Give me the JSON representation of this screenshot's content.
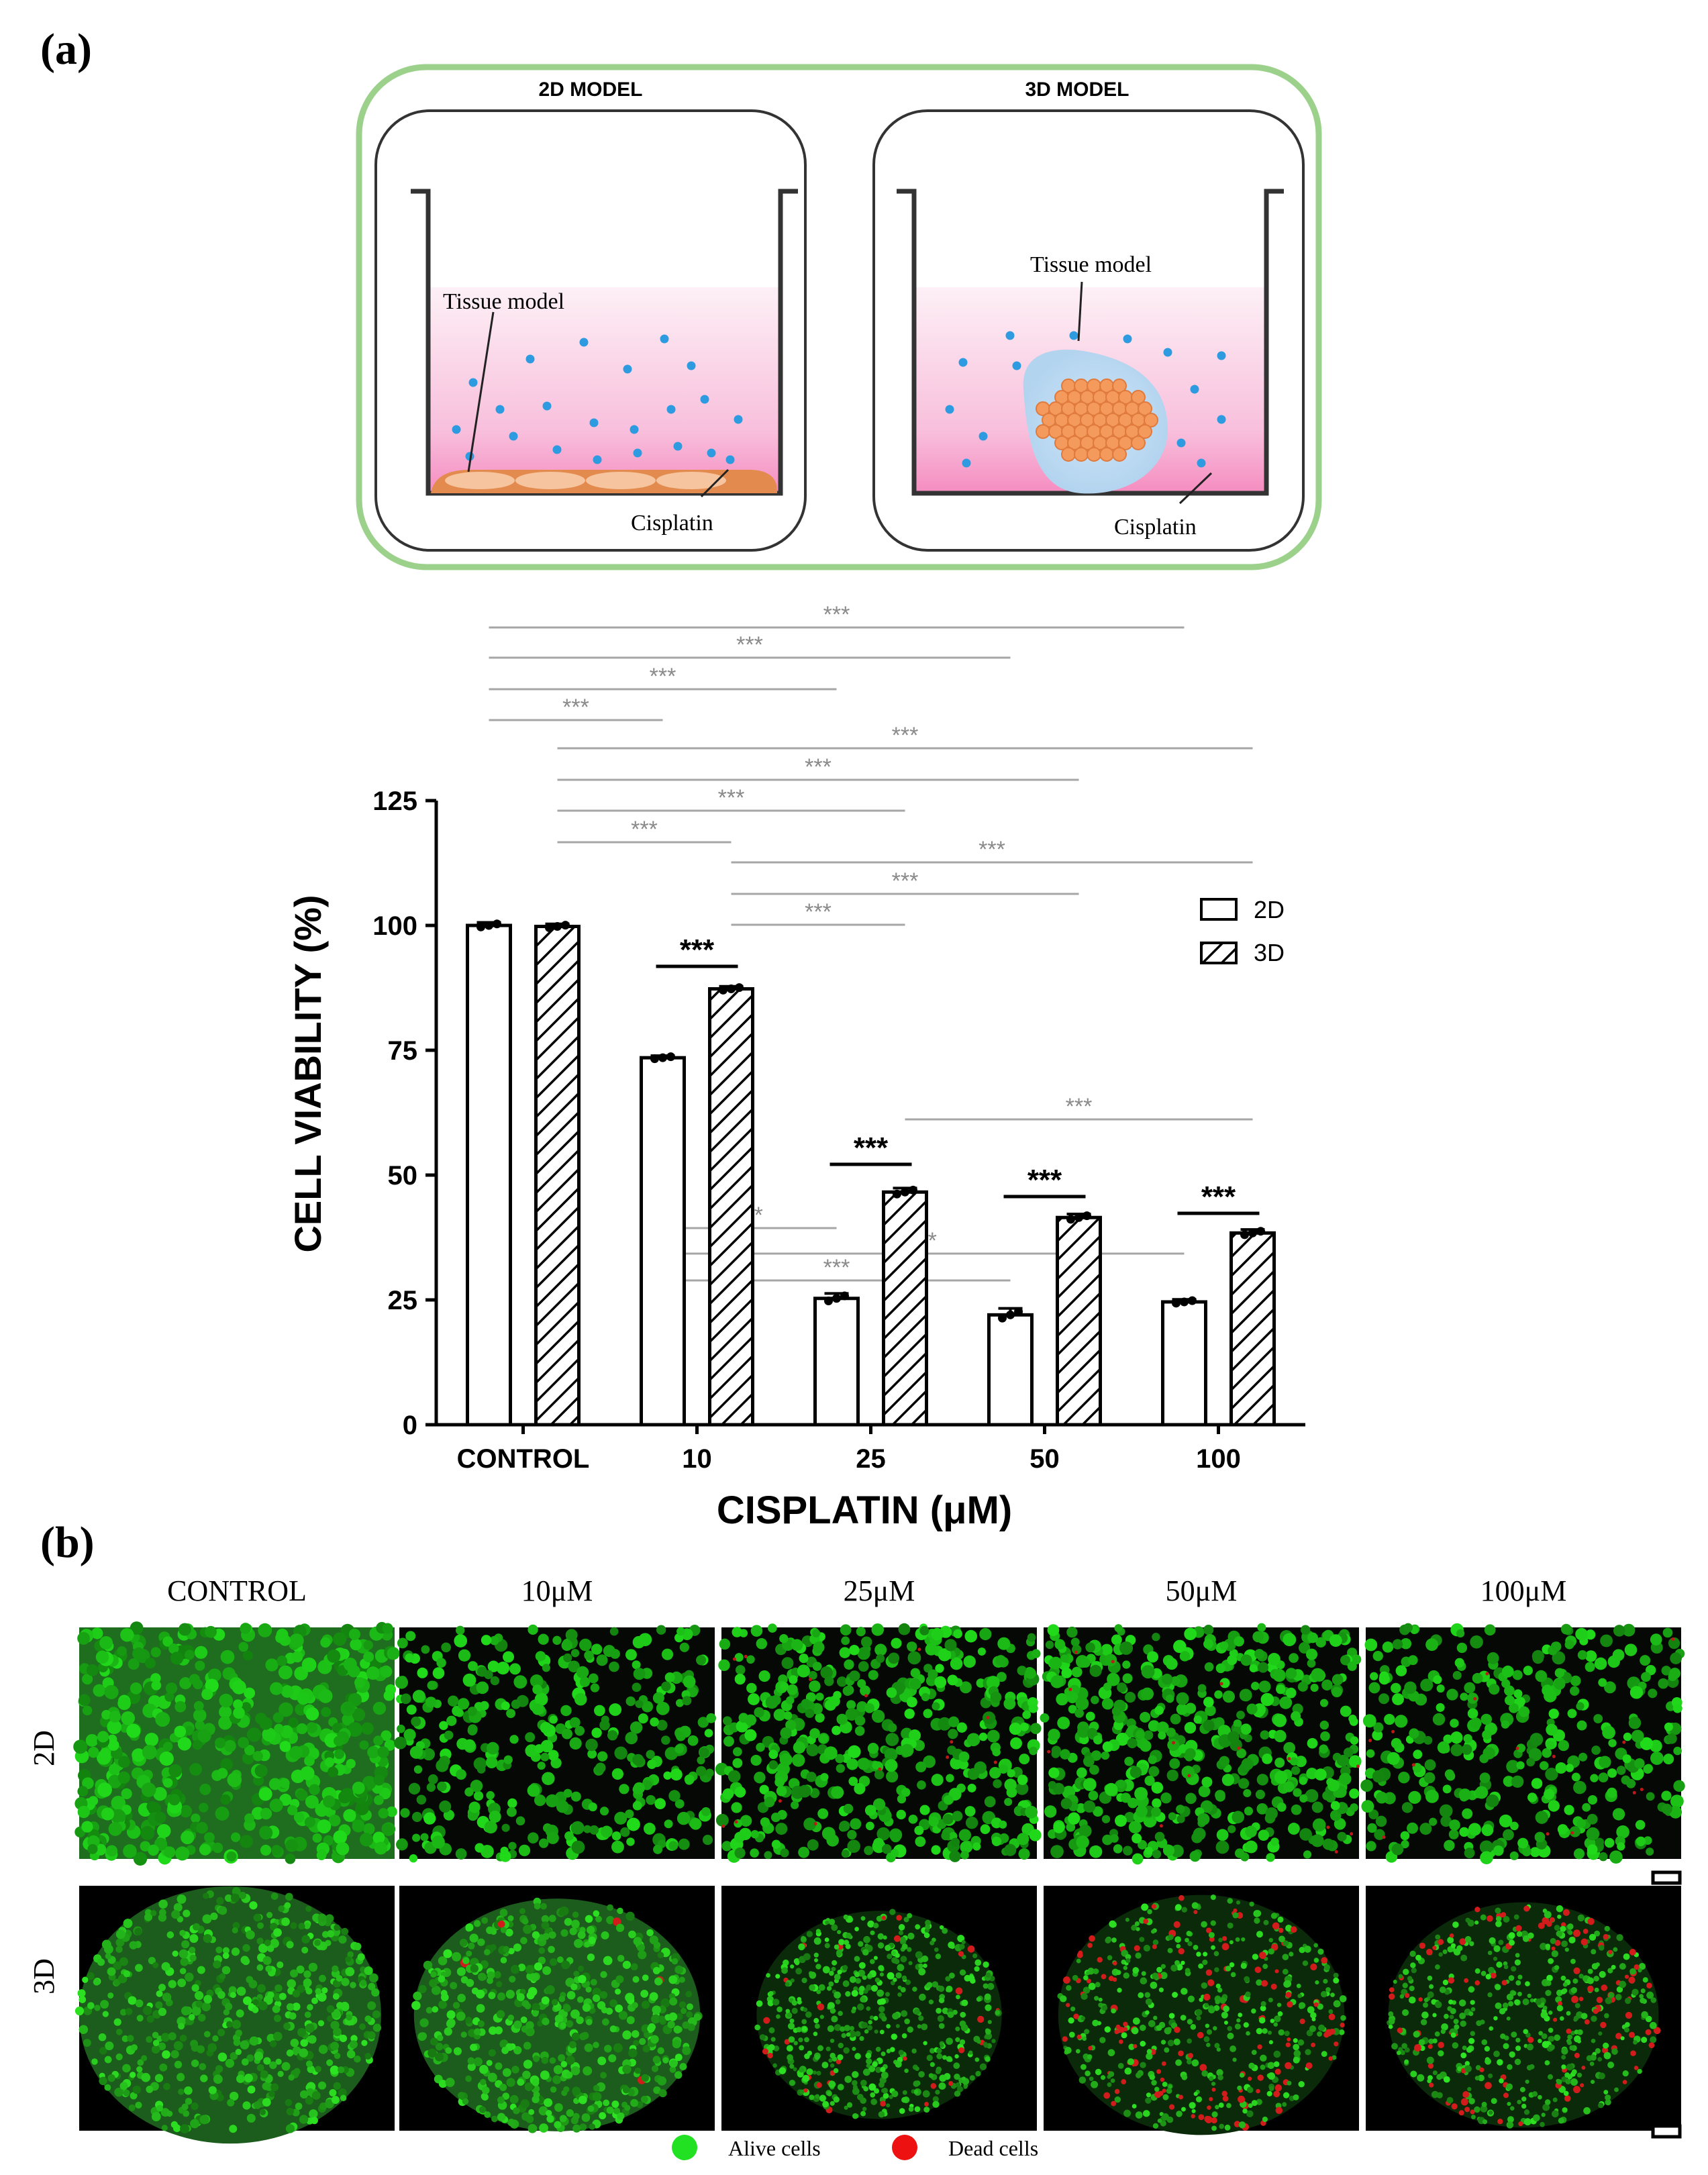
{
  "panel_labels": {
    "a": "(a)",
    "b": "(b)"
  },
  "schematic": {
    "outline_color": "#9bd18b",
    "models": [
      {
        "title": "2D MODEL",
        "tissue_label": "Tissue model",
        "drug_label": "Cisplatin"
      },
      {
        "title": "3D MODEL",
        "tissue_label": "Tissue model",
        "drug_label": "Cisplatin"
      }
    ]
  },
  "chart_data": {
    "type": "bar",
    "title": "",
    "xlabel": "CISPLATIN (μM)",
    "ylabel": "CELL VIABILITY (%)",
    "categories": [
      "CONTROL",
      "10",
      "25",
      "50",
      "100"
    ],
    "ylim": [
      0,
      125
    ],
    "yticks": [
      0,
      25,
      50,
      75,
      100,
      125
    ],
    "grid": false,
    "legend_position": "top-right",
    "series": [
      {
        "name": "2D",
        "fill": "white",
        "values": [
          100,
          73.5,
          25.3,
          22,
          24.6
        ],
        "errors": [
          0.6,
          0.4,
          1.0,
          1.3,
          0.5
        ]
      },
      {
        "name": "3D",
        "fill": "hatch",
        "values": [
          99.8,
          87.3,
          46.6,
          41.5,
          38.4
        ],
        "errors": [
          0.5,
          0.5,
          0.8,
          0.7,
          0.7
        ]
      }
    ],
    "significance_label": "***"
  },
  "micrographs": {
    "columns": [
      "CONTROL",
      "10μM",
      "25μM",
      "50μM",
      "100μM"
    ],
    "rows": [
      "2D",
      "3D"
    ],
    "legend": [
      {
        "label": "Alive cells",
        "color": "#22e022"
      },
      {
        "label": "Dead cells",
        "color": "#ee1111"
      }
    ]
  }
}
